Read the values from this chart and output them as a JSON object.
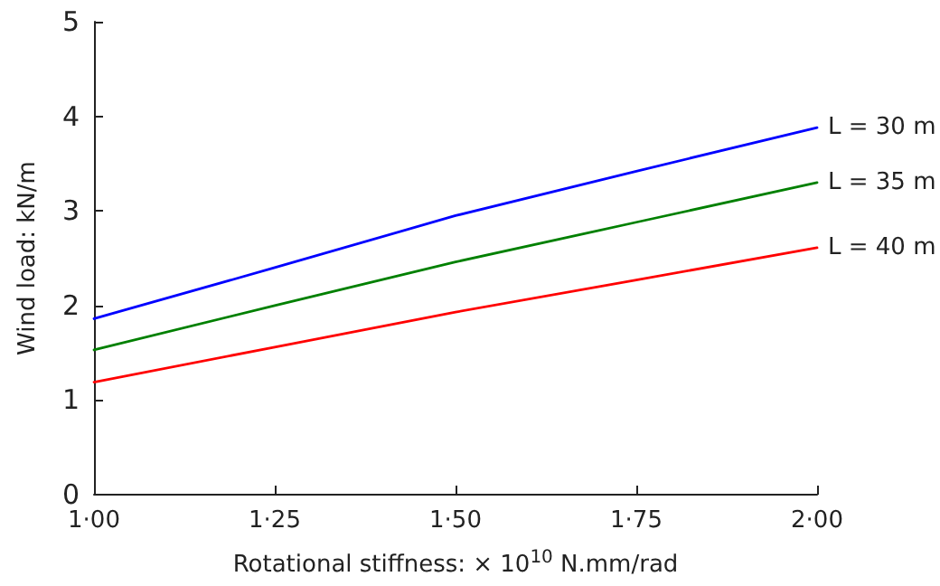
{
  "chart_data": {
    "type": "line",
    "xlabel": "Rotational stiffness: × 10$^{10}$ N.mm/rad",
    "ylabel": "Wind load: kN/m",
    "categories": [
      "1·00",
      "1·25",
      "1·50",
      "1·75",
      "2·00"
    ],
    "series": [
      {
        "name": "L = 30 m",
        "color": "#0000ff",
        "values": [
          1.86,
          2.4,
          2.95,
          3.42,
          3.88
        ]
      },
      {
        "name": "L = 35 m",
        "color": "#008000",
        "values": [
          1.53,
          2.0,
          2.46,
          2.88,
          3.3
        ]
      },
      {
        "name": "L = 40 m",
        "color": "#ff0000",
        "values": [
          1.19,
          1.56,
          1.93,
          2.27,
          2.61
        ]
      }
    ],
    "ylim": [
      0,
      5
    ],
    "yticks": [
      0,
      1,
      2,
      3,
      4,
      5
    ],
    "grid": false,
    "legend": false,
    "marker": "none",
    "line_style": "solid"
  }
}
